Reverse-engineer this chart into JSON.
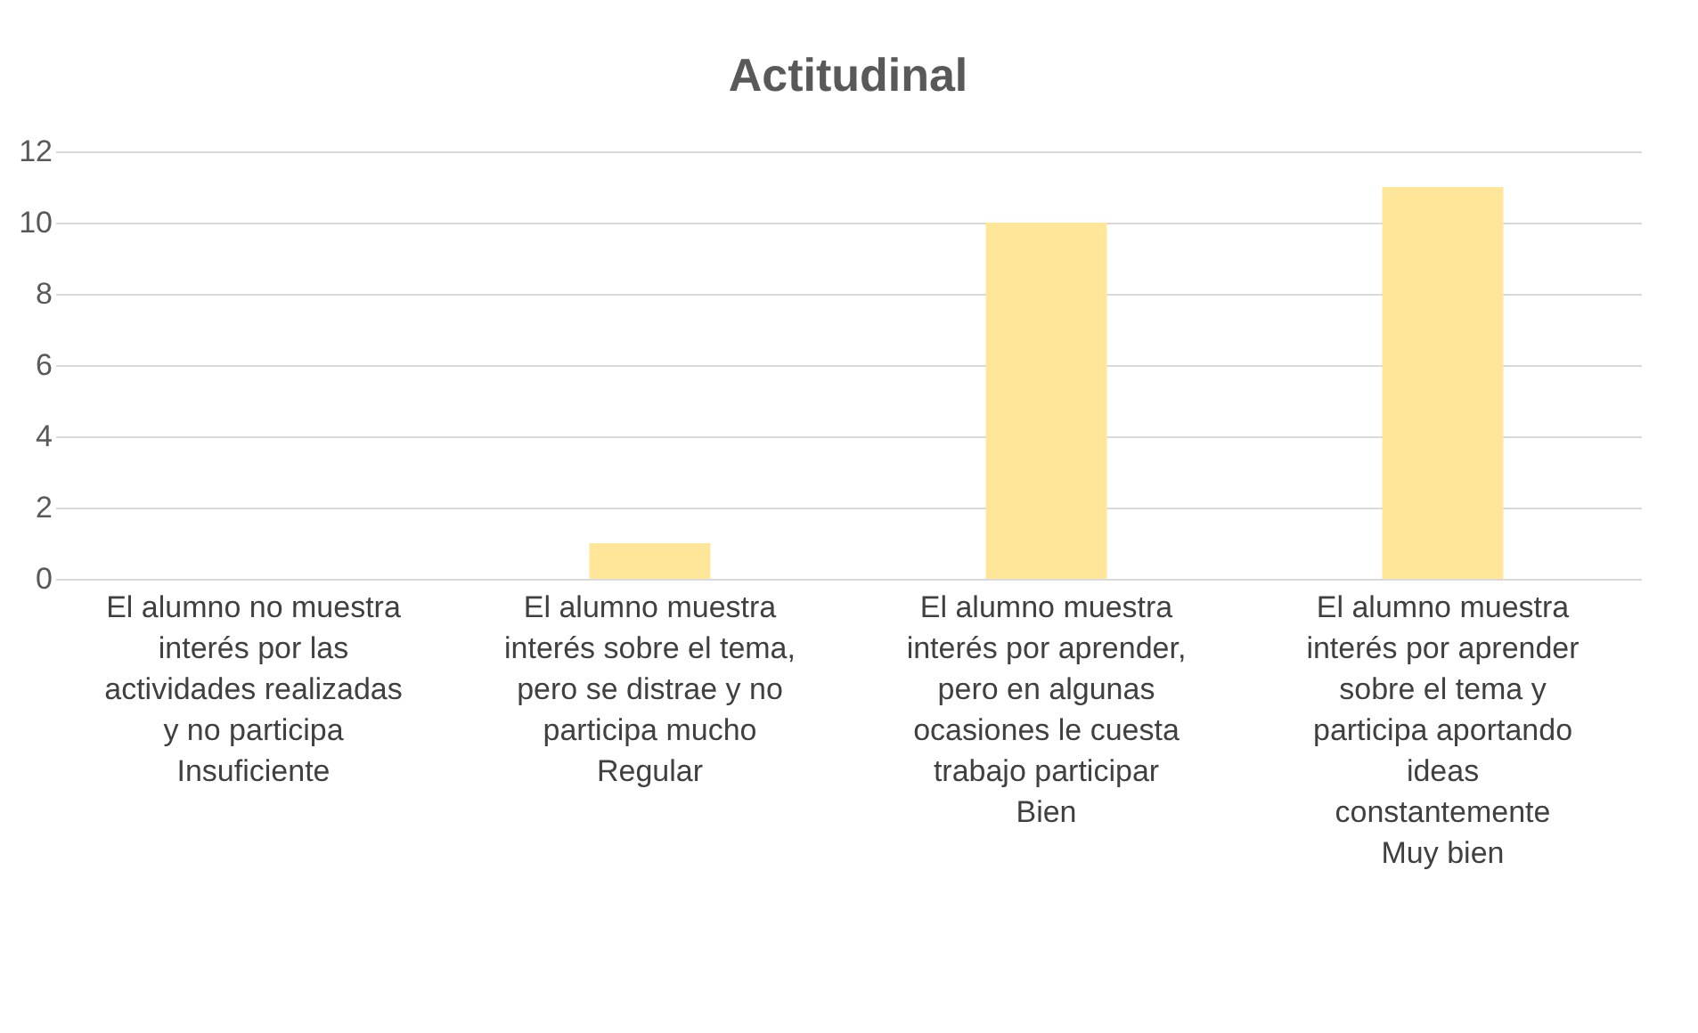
{
  "chart_data": {
    "type": "bar",
    "title": "Actitudinal",
    "categories": [
      "El alumno no muestra\ninterés por las\nactividades realizadas\ny no participa\nInsuficiente",
      "El alumno muestra\ninterés sobre el tema,\npero se distrae y no\nparticipa mucho\nRegular",
      "El alumno muestra\ninterés por aprender,\npero en algunas\nocasiones le cuesta\ntrabajo participar\nBien",
      "El alumno muestra\ninterés por aprender\nsobre el tema y\nparticipa aportando\nideas\nconstantemente\nMuy bien"
    ],
    "values": [
      0,
      1,
      10,
      11
    ],
    "color": "#ffe699",
    "ylim": [
      0,
      12
    ],
    "yticks": [
      0,
      2,
      4,
      6,
      8,
      10,
      12
    ],
    "grid": "y"
  }
}
